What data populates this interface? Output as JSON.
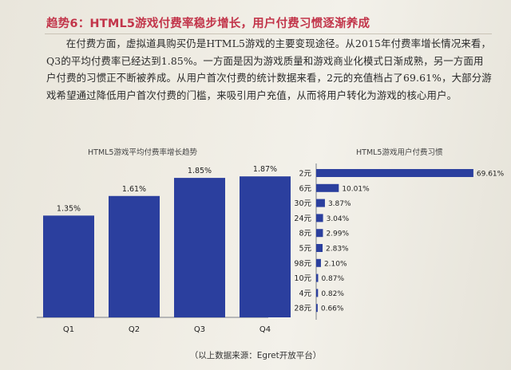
{
  "heading": "趋势6：HTML5游戏付费率稳步增长，用户付费习惯逐渐养成",
  "paragraph": "在付费方面，虚拟道具购买仍是HTML5游戏的主要变现途径。从2015年付费率增长情况来看，Q3的平均付费率已经达到1.85%。一方面是因为游戏质量和游戏商业化模式日渐成熟，另一方面用户付费的习惯正不断被养成。从用户首次付费的统计数据来看，2元的充值档占了69.61%，大部分游戏希望通过降低用户首次付费的门槛，来吸引用户充值，从而将用户转化为游戏的核心用户。",
  "source": "（以上数据来源：Egret开放平台）",
  "colors": {
    "bar": "#2b3f9e",
    "heading": "#c2354a"
  },
  "chart_data": [
    {
      "type": "bar",
      "title": "HTML5游戏平均付费率增长趋势",
      "categories": [
        "Q1",
        "Q2",
        "Q3",
        "Q4"
      ],
      "values": [
        1.35,
        1.61,
        1.85,
        1.87
      ],
      "labels": [
        "1.35%",
        "1.61%",
        "1.85%",
        "1.87%"
      ],
      "ylim": [
        0,
        2.2
      ]
    },
    {
      "type": "bar",
      "orientation": "horizontal",
      "title": "HTML5游戏用户付费习惯",
      "categories": [
        "2元",
        "6元",
        "30元",
        "24元",
        "8元",
        "5元",
        "98元",
        "10元",
        "4元",
        "28元"
      ],
      "values": [
        69.61,
        10.01,
        3.87,
        3.04,
        2.99,
        2.83,
        2.1,
        0.87,
        0.82,
        0.66
      ],
      "labels": [
        "69.61%",
        "10.01%",
        "3.87%",
        "3.04%",
        "2.99%",
        "2.83%",
        "2.10%",
        "0.87%",
        "0.82%",
        "0.66%"
      ],
      "xlim": [
        0,
        70
      ]
    }
  ]
}
